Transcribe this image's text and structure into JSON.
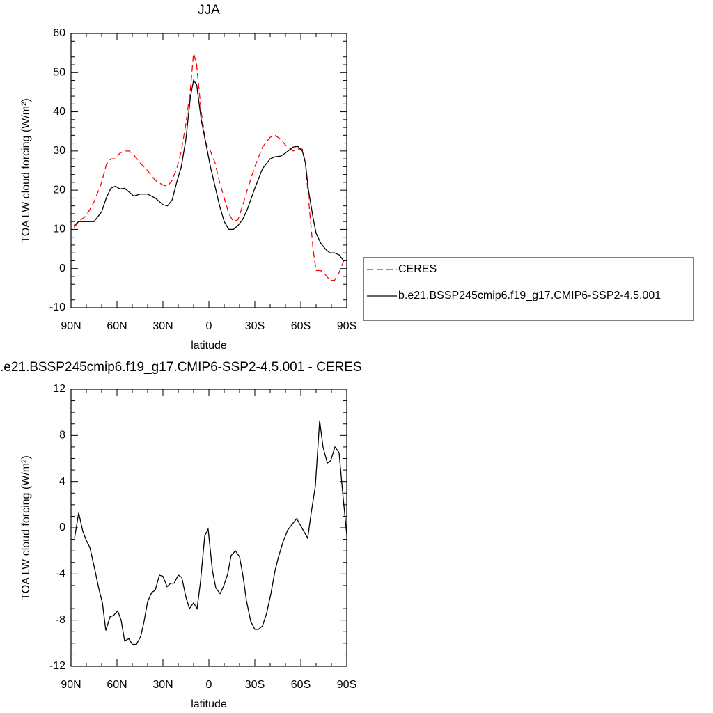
{
  "chart_data": [
    {
      "type": "line",
      "title": "JJA",
      "xlabel": "latitude",
      "ylabel": "TOA LW cloud forcing (W/m²)",
      "x": [
        88,
        85,
        80,
        75,
        70,
        67,
        64,
        61,
        58,
        55,
        52,
        49,
        45,
        40,
        35,
        30,
        27,
        24,
        21,
        18,
        15,
        12,
        10,
        8,
        5,
        2,
        -1,
        -4,
        -7,
        -10,
        -13,
        -16,
        -19,
        -22,
        -25,
        -30,
        -35,
        -40,
        -43,
        -47,
        -50,
        -55,
        -58,
        -61,
        -63,
        -65,
        -68,
        -70,
        -73,
        -76,
        -79,
        -82,
        -85,
        -88
      ],
      "series": [
        {
          "name": "CERES",
          "color": "#ff0000",
          "linestyle": "dashed",
          "values": [
            10.5,
            12,
            13.5,
            17,
            22,
            26.5,
            28,
            28,
            29.5,
            30,
            30,
            29,
            27,
            25,
            22.5,
            21.3,
            21,
            22.5,
            25.5,
            30,
            37,
            46,
            55,
            52,
            40,
            32,
            30,
            27,
            22,
            18,
            14,
            12,
            12.5,
            16,
            20,
            26,
            31,
            33.5,
            34,
            33,
            31.5,
            30,
            30.5,
            30.5,
            27,
            18,
            5,
            -0.5,
            -0.5,
            -1.5,
            -3,
            -3,
            -1,
            2
          ]
        },
        {
          "name": "b.e21.BSSP245cmip6.f19_g17.CMIP6-SSP2-4.5.001",
          "color": "#000000",
          "linestyle": "solid",
          "values": [
            11,
            12,
            12,
            12,
            14.5,
            18,
            20.5,
            21,
            20.3,
            20.5,
            19.5,
            18.5,
            19,
            19,
            18,
            16.3,
            16,
            17.5,
            22,
            26,
            33,
            44,
            48,
            47,
            38,
            32,
            26,
            21,
            16,
            12,
            10,
            10,
            11,
            12.5,
            15,
            20.5,
            25.5,
            28,
            28.5,
            28.7,
            29.5,
            31,
            31.2,
            30,
            27,
            20,
            13,
            9,
            6.5,
            5,
            4,
            4,
            3.5,
            2
          ]
        }
      ],
      "xlim": [
        90,
        -90
      ],
      "xticks": [
        {
          "value": 90,
          "label": "90N"
        },
        {
          "value": 60,
          "label": "60N"
        },
        {
          "value": 30,
          "label": "30N"
        },
        0,
        {
          "value": -30,
          "label": "30S"
        },
        {
          "value": -60,
          "label": "60S"
        },
        {
          "value": -90,
          "label": "90S"
        }
      ],
      "ylim": [
        -10,
        60
      ],
      "yticks": [
        -10,
        0,
        10,
        20,
        30,
        40,
        50,
        60
      ],
      "legend": "outside-right"
    },
    {
      "type": "line",
      "title": ".e21.BSSP245cmip6.f19_g17.CMIP6-SSP2-4.5.001 - CERES",
      "xlabel": "latitude",
      "ylabel": "TOA LW cloud forcing (W/m²)",
      "x": [
        87.7,
        85,
        82.3,
        80,
        77.7,
        74.5,
        71.8,
        69.5,
        67.3,
        64.5,
        62.3,
        59.5,
        57.3,
        55,
        52.3,
        50,
        47.3,
        44.5,
        42.3,
        40,
        37.3,
        35,
        32.3,
        30,
        27.3,
        25,
        22.7,
        20,
        17.7,
        15,
        12.7,
        10,
        7.7,
        5.5,
        2.7,
        0.5,
        -2.3,
        -4.5,
        -7.3,
        -9.5,
        -12.3,
        -14.5,
        -17.3,
        -20,
        -22.3,
        -24.5,
        -27.3,
        -30,
        -32.3,
        -35,
        -37.7,
        -40.5,
        -43.2,
        -45.5,
        -48.2,
        -51.4,
        -57.3,
        -64.5,
        -66.8,
        -69.5,
        -72.3,
        -74.5,
        -77.3,
        -79.5,
        -82.3,
        -85,
        -87.3,
        -90
      ],
      "series": [
        {
          "name": null,
          "color": "#000000",
          "linestyle": "solid",
          "values": [
            -0.9,
            1.3,
            -0.3,
            -1.1,
            -1.7,
            -3.6,
            -5.3,
            -6.5,
            -8.9,
            -7.7,
            -7.6,
            -7.2,
            -8.0,
            -9.8,
            -9.6,
            -10.1,
            -10.1,
            -9.4,
            -8.1,
            -6.4,
            -5.6,
            -5.4,
            -4.1,
            -4.2,
            -5.1,
            -4.8,
            -4.8,
            -4.1,
            -4.3,
            -6.0,
            -7.0,
            -6.5,
            -7.0,
            -4.7,
            -0.7,
            -0.1,
            -3.7,
            -5.2,
            -5.7,
            -5.1,
            -4.0,
            -2.4,
            -2.0,
            -2.5,
            -4.2,
            -6.3,
            -8.1,
            -8.8,
            -8.8,
            -8.5,
            -7.4,
            -5.7,
            -3.7,
            -2.5,
            -1.3,
            -0.2,
            0.8,
            -0.9,
            1.3,
            3.6,
            9.3,
            7.0,
            5.6,
            5.8,
            7.0,
            6.5,
            3.1,
            -0.6
          ]
        }
      ],
      "xlim": [
        90,
        -90
      ],
      "xticks": [
        {
          "value": 90,
          "label": "90N"
        },
        {
          "value": 60,
          "label": "60N"
        },
        {
          "value": 30,
          "label": "30N"
        },
        0,
        {
          "value": -30,
          "label": "30S"
        },
        {
          "value": -60,
          "label": "60S"
        },
        {
          "value": -90,
          "label": "90S"
        }
      ],
      "ylim": [
        -12,
        12
      ],
      "yticks": [
        -12,
        -8,
        -4,
        0,
        4,
        8,
        12
      ]
    }
  ]
}
